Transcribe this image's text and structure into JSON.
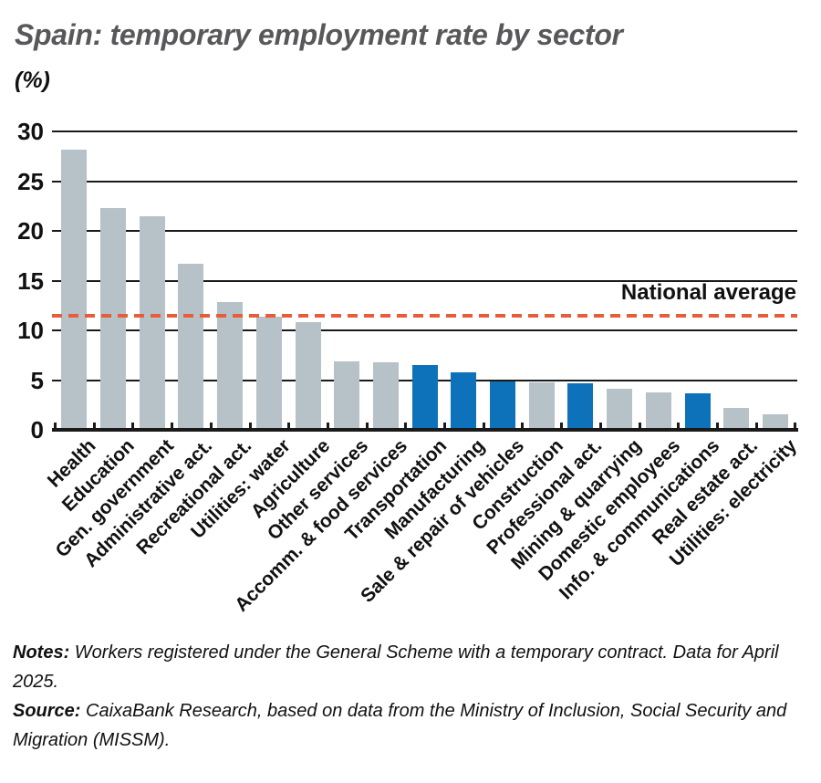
{
  "header": {
    "title": "Spain: temporary employment rate by sector",
    "unit_label": "(%)"
  },
  "chart_data": {
    "type": "bar",
    "title": "Spain: temporary employment rate by sector",
    "ylabel": "(%)",
    "xlabel": "",
    "ylim": [
      0,
      30
    ],
    "yticks": [
      0,
      5,
      10,
      15,
      20,
      25,
      30
    ],
    "grid": "horizontal",
    "categories": [
      "Health",
      "Education",
      "Gen. government",
      "Administrative act.",
      "Recreational act.",
      "Utilities: water",
      "Agriculture",
      "Other services",
      "Accomm. & food services",
      "Transportation",
      "Manufacturing",
      "Sale & repair of vehicles",
      "Construction",
      "Professional act.",
      "Mining & quarrying",
      "Domestic employees",
      "Info. & communications",
      "Real estate act.",
      "Utilities: electricity"
    ],
    "values": [
      28.2,
      22.3,
      21.5,
      16.7,
      12.8,
      11.4,
      10.8,
      6.9,
      6.8,
      6.5,
      5.8,
      4.9,
      4.8,
      4.7,
      4.1,
      3.8,
      3.7,
      2.2,
      1.6
    ],
    "highlighted": [
      false,
      false,
      false,
      false,
      false,
      false,
      false,
      false,
      false,
      true,
      true,
      true,
      false,
      true,
      false,
      false,
      true,
      false,
      false
    ],
    "average_line": {
      "label": "National average",
      "value": 11.5
    },
    "colors": {
      "bar_default": "#b6c1c8",
      "bar_highlight": "#0d72b9",
      "average_line": "#e85d39",
      "grid": "#1a1a1a",
      "text": "#111111",
      "title": "#58585a",
      "background": "#ffffff"
    }
  },
  "footer": {
    "notes_label": "Notes:",
    "notes_text": "Workers registered under the General Scheme with a temporary contract. Data for April 2025.",
    "source_label": "Source:",
    "source_text": "CaixaBank Research, based on data from the Ministry of Inclusion, Social Security and Migration (MISSM)."
  }
}
